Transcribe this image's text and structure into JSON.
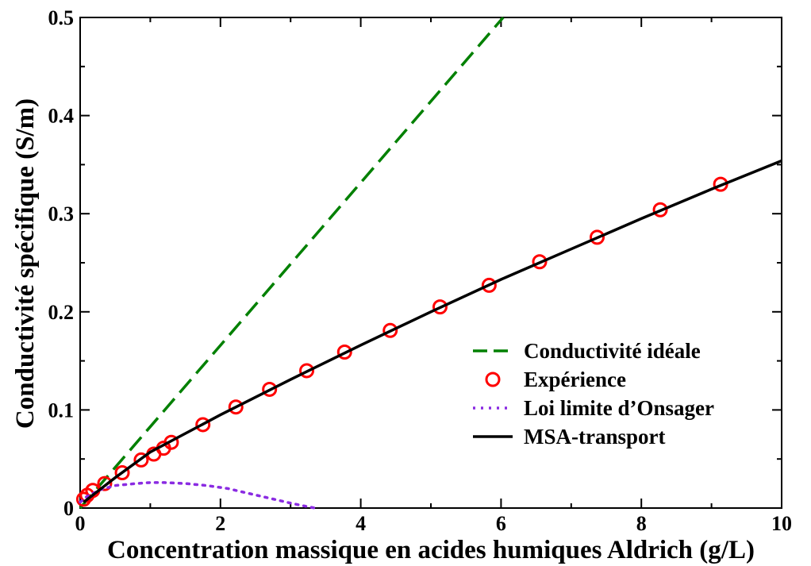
{
  "chart_data": {
    "type": "line",
    "title": "",
    "xlabel": "Concentration massique en acides humiques Aldrich (g/L)",
    "ylabel": "Conductivité spécifique (S/m)",
    "xlim": [
      0,
      10
    ],
    "ylim": [
      0,
      0.5
    ],
    "x_ticks": [
      0,
      2,
      4,
      6,
      8,
      10
    ],
    "x_tick_labels": [
      "0",
      "2",
      "4",
      "6",
      "8",
      "10"
    ],
    "y_ticks": [
      0,
      0.1,
      0.2,
      0.3,
      0.4,
      0.5
    ],
    "y_tick_labels": [
      "0",
      "0.1",
      "0.2",
      "0.3",
      "0.4",
      "0.5"
    ],
    "grid": false,
    "legend_position": "lower-right",
    "series": [
      {
        "name": "Conductivité idéale",
        "style": "dashed",
        "color": "#008000",
        "x": [
          0,
          6.03
        ],
        "y": [
          0,
          0.5
        ]
      },
      {
        "name": "Expérience",
        "style": "circles",
        "color": "#ff0000",
        "x": [
          0.05,
          0.1,
          0.18,
          0.35,
          0.6,
          0.87,
          1.05,
          1.19,
          1.3,
          1.75,
          2.22,
          2.7,
          3.23,
          3.77,
          4.42,
          5.13,
          5.83,
          6.55,
          7.37,
          8.27,
          9.13
        ],
        "y": [
          0.009,
          0.013,
          0.018,
          0.025,
          0.036,
          0.049,
          0.055,
          0.061,
          0.067,
          0.085,
          0.103,
          0.121,
          0.14,
          0.159,
          0.181,
          0.205,
          0.227,
          0.251,
          0.276,
          0.304,
          0.33
        ]
      },
      {
        "name": "Loi limite d’Onsager",
        "style": "dotted",
        "color": "#8a2be2",
        "x": [
          0,
          0.1,
          0.3,
          0.5,
          0.8,
          1.0,
          1.2,
          1.5,
          1.8,
          2.1,
          2.4,
          2.7,
          3.0,
          3.2,
          3.35
        ],
        "y": [
          0.006,
          0.012,
          0.019,
          0.023,
          0.025,
          0.026,
          0.026,
          0.025,
          0.023,
          0.02,
          0.015,
          0.01,
          0.005,
          0.002,
          0
        ]
      },
      {
        "name": "MSA-transport",
        "style": "solid",
        "color": "#000000",
        "x": [
          0.05,
          0.5,
          1,
          2,
          3,
          4,
          5,
          6,
          7,
          8,
          9,
          10
        ],
        "y": [
          0.006,
          0.031,
          0.057,
          0.095,
          0.131,
          0.166,
          0.2,
          0.233,
          0.264,
          0.295,
          0.325,
          0.354
        ]
      }
    ]
  }
}
